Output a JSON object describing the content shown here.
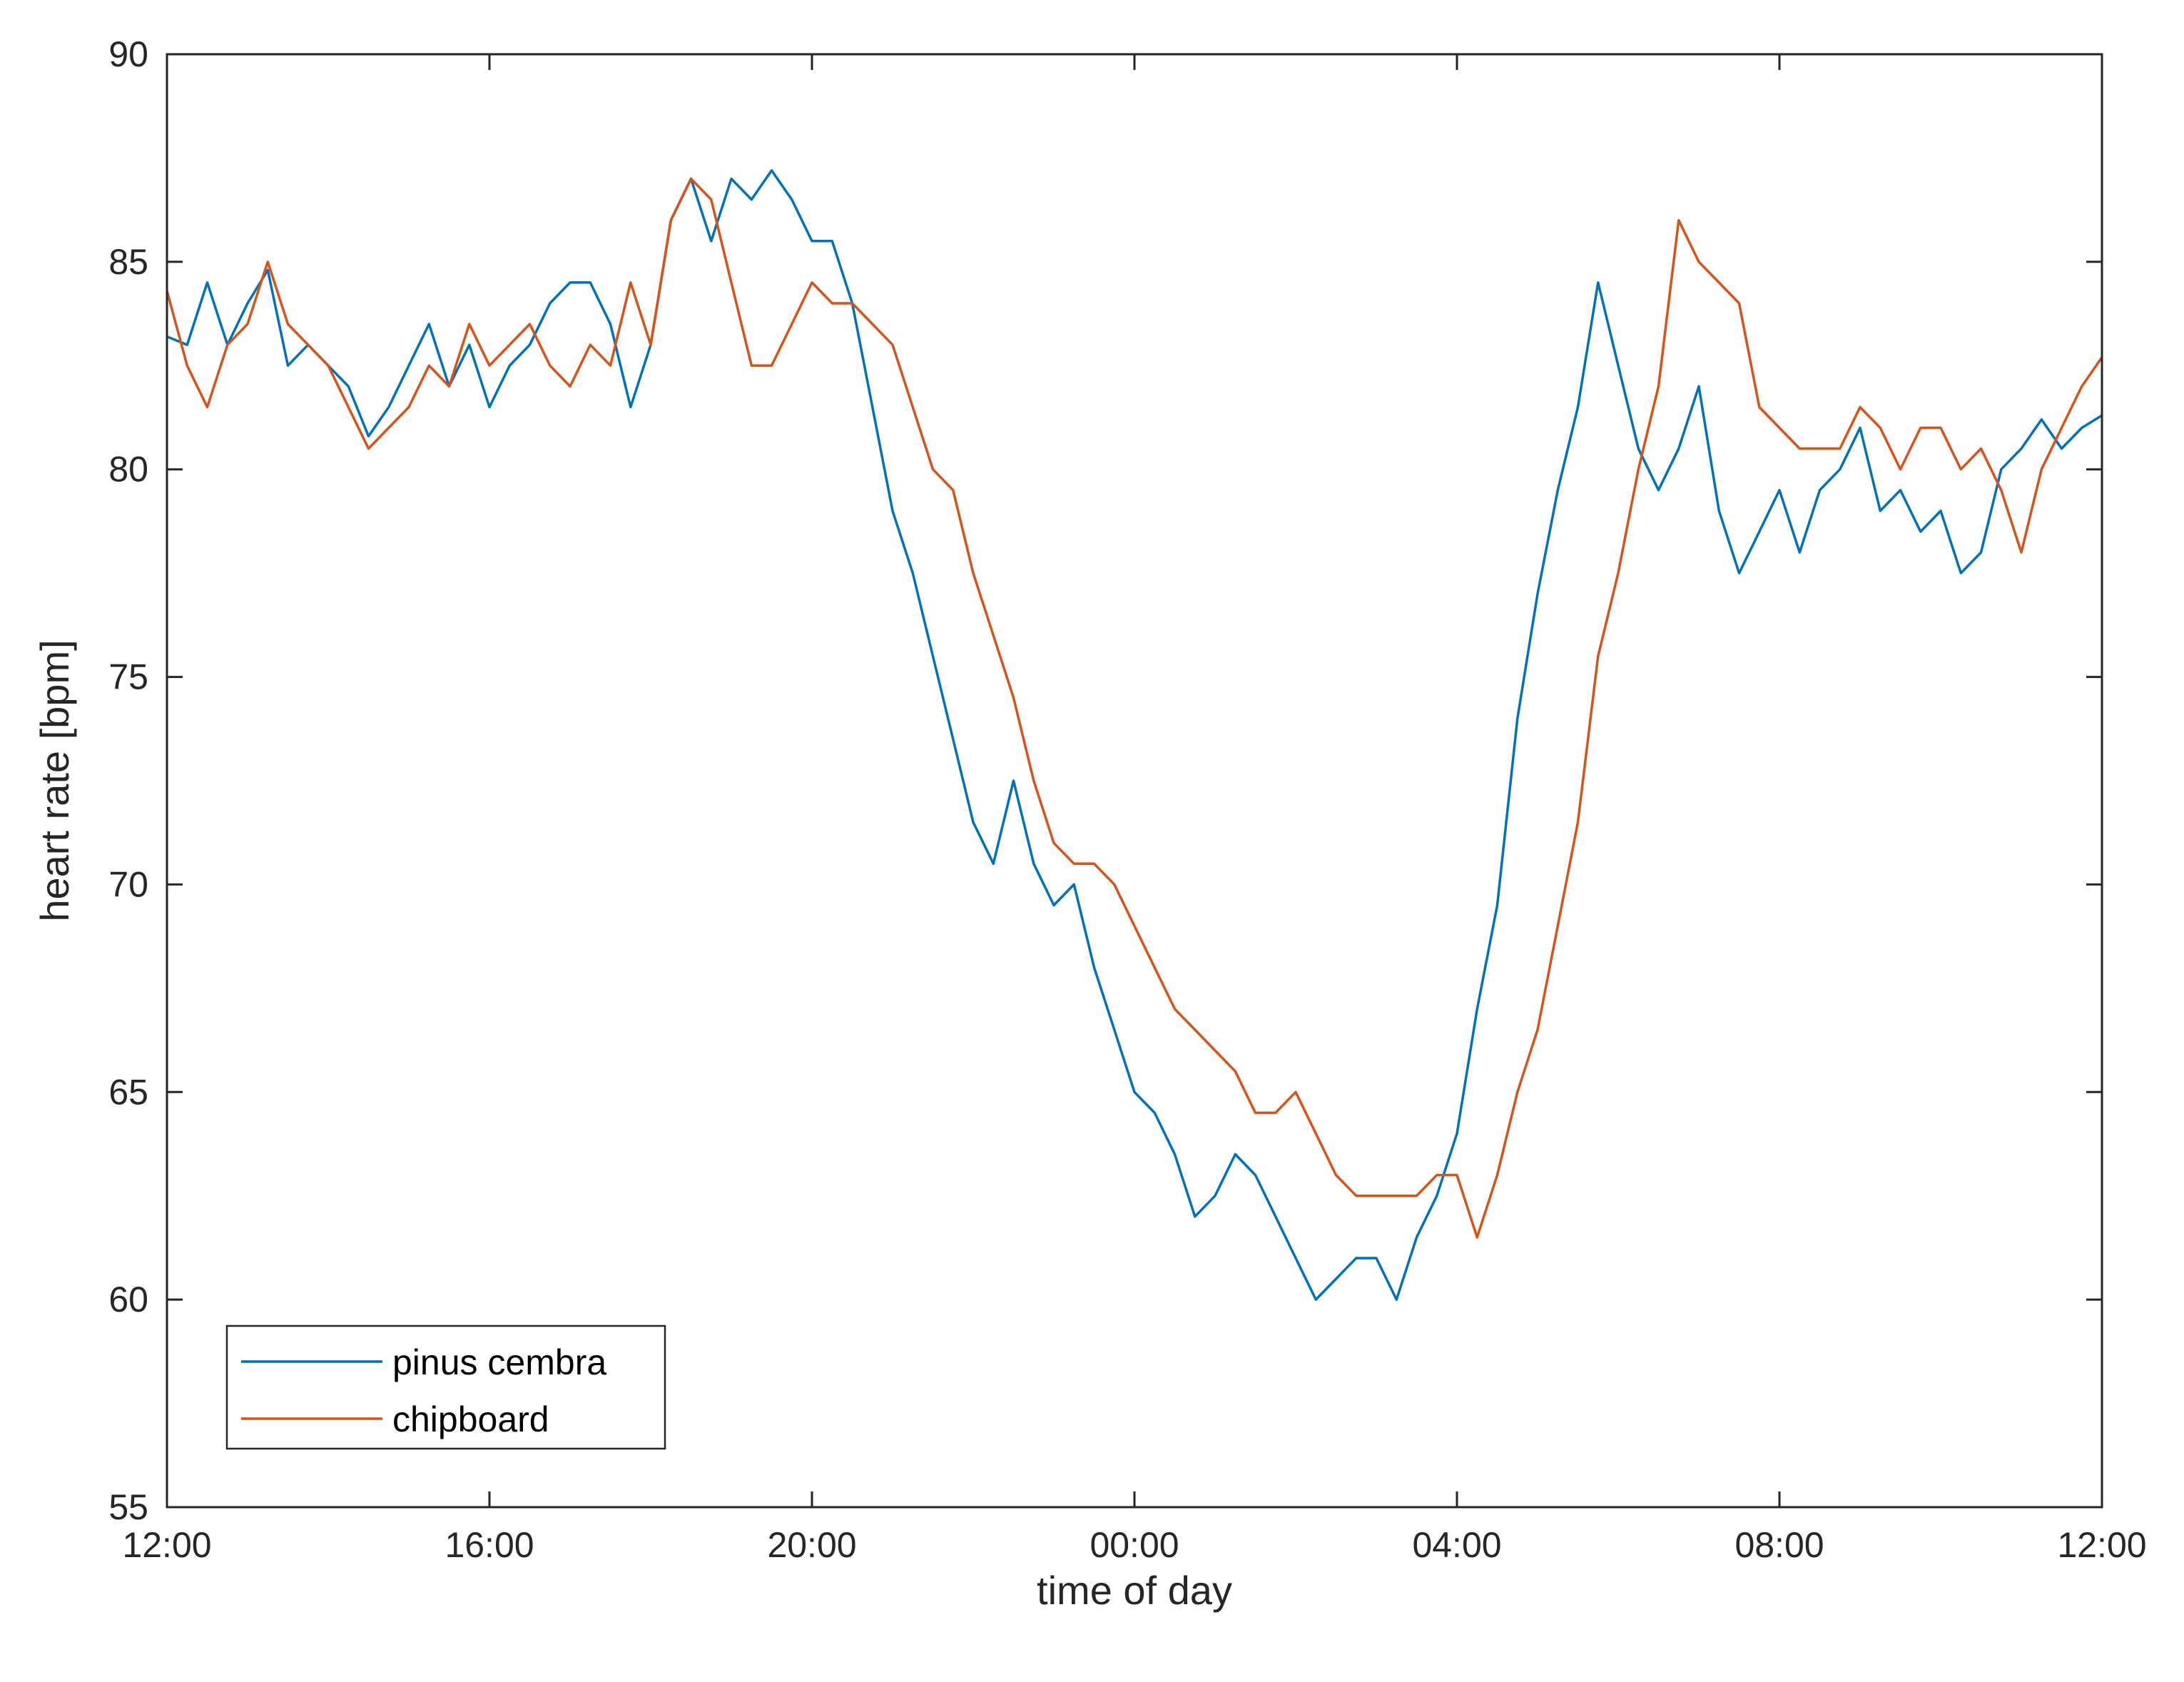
{
  "chart_data": {
    "type": "line",
    "xlabel": "time of day",
    "ylabel": "heart rate [bpm]",
    "ylim": [
      55,
      90
    ],
    "y_ticks": [
      55,
      60,
      65,
      70,
      75,
      80,
      85,
      90
    ],
    "x_ticks": [
      "12:00",
      "16:00",
      "20:00",
      "00:00",
      "04:00",
      "08:00",
      "12:00"
    ],
    "x_unit": "hours since 12:00",
    "xlim": [
      0,
      24
    ],
    "grid": false,
    "legend_position": "bottom-left",
    "series": [
      {
        "name": "pinus cembra",
        "color": "#0072BD",
        "x": [
          0,
          0.25,
          0.5,
          0.75,
          1,
          1.25,
          1.5,
          1.75,
          2,
          2.25,
          2.5,
          2.75,
          3,
          3.25,
          3.5,
          3.75,
          4,
          4.25,
          4.5,
          4.75,
          5,
          5.25,
          5.5,
          5.75,
          6,
          6.25,
          6.5,
          6.75,
          7,
          7.25,
          7.5,
          7.75,
          8,
          8.25,
          8.5,
          8.75,
          9,
          9.25,
          9.5,
          9.75,
          10,
          10.25,
          10.5,
          10.75,
          11,
          11.25,
          11.5,
          11.75,
          12,
          12.25,
          12.5,
          12.75,
          13,
          13.25,
          13.5,
          13.75,
          14,
          14.25,
          14.5,
          14.75,
          15,
          15.25,
          15.5,
          15.75,
          16,
          16.25,
          16.5,
          16.75,
          17,
          17.25,
          17.5,
          17.75,
          18,
          18.25,
          18.5,
          18.75,
          19,
          19.25,
          19.5,
          19.75,
          20,
          20.25,
          20.5,
          20.75,
          21,
          21.25,
          21.5,
          21.75,
          22,
          22.25,
          22.5,
          22.75,
          23,
          23.25,
          23.5,
          23.75,
          24
        ],
        "y": [
          83.2,
          83.0,
          84.5,
          83.0,
          84.0,
          84.8,
          82.5,
          83.0,
          82.5,
          82.0,
          80.8,
          81.5,
          82.5,
          83.5,
          82.0,
          83.0,
          81.5,
          82.5,
          83.0,
          84.0,
          84.5,
          84.5,
          83.5,
          81.5,
          83.0,
          86.0,
          87.0,
          85.5,
          87.0,
          86.5,
          87.2,
          86.5,
          85.5,
          85.5,
          84.0,
          81.5,
          79.0,
          77.5,
          75.5,
          73.5,
          71.5,
          70.5,
          72.5,
          70.5,
          69.5,
          70.0,
          68.0,
          66.5,
          65.0,
          64.5,
          63.5,
          62.0,
          62.5,
          63.5,
          63.0,
          62.0,
          61.0,
          60.0,
          60.5,
          61.0,
          61.0,
          60.0,
          61.5,
          62.5,
          64.0,
          67.0,
          69.5,
          74.0,
          77.0,
          79.5,
          81.5,
          84.5,
          82.5,
          80.5,
          79.5,
          80.5,
          82.0,
          79.0,
          77.5,
          78.5,
          79.5,
          78.0,
          79.5,
          80.0,
          81.0,
          79.0,
          79.5,
          78.5,
          79.0,
          77.5,
          78.0,
          80.0,
          80.5,
          81.2,
          80.5,
          81.0,
          81.3
        ]
      },
      {
        "name": "chipboard",
        "color": "#D95319",
        "x": [
          0,
          0.25,
          0.5,
          0.75,
          1,
          1.25,
          1.5,
          1.75,
          2,
          2.25,
          2.5,
          2.75,
          3,
          3.25,
          3.5,
          3.75,
          4,
          4.25,
          4.5,
          4.75,
          5,
          5.25,
          5.5,
          5.75,
          6,
          6.25,
          6.5,
          6.75,
          7,
          7.25,
          7.5,
          7.75,
          8,
          8.25,
          8.5,
          8.75,
          9,
          9.25,
          9.5,
          9.75,
          10,
          10.25,
          10.5,
          10.75,
          11,
          11.25,
          11.5,
          11.75,
          12,
          12.25,
          12.5,
          12.75,
          13,
          13.25,
          13.5,
          13.75,
          14,
          14.25,
          14.5,
          14.75,
          15,
          15.25,
          15.5,
          15.75,
          16,
          16.25,
          16.5,
          16.75,
          17,
          17.25,
          17.5,
          17.75,
          18,
          18.25,
          18.5,
          18.75,
          19,
          19.25,
          19.5,
          19.75,
          20,
          20.25,
          20.5,
          20.75,
          21,
          21.25,
          21.5,
          21.75,
          22,
          22.25,
          22.5,
          22.75,
          23,
          23.25,
          23.5,
          23.75,
          24
        ],
        "y": [
          84.3,
          82.5,
          81.5,
          83.0,
          83.5,
          85.0,
          83.5,
          83.0,
          82.5,
          81.5,
          80.5,
          81.0,
          81.5,
          82.5,
          82.0,
          83.5,
          82.5,
          83.0,
          83.5,
          82.5,
          82.0,
          83.0,
          82.5,
          84.5,
          83.0,
          86.0,
          87.0,
          86.5,
          84.5,
          82.5,
          82.5,
          83.5,
          84.5,
          84.0,
          84.0,
          83.5,
          83.0,
          81.5,
          80.0,
          79.5,
          77.5,
          76.0,
          74.5,
          72.5,
          71.0,
          70.5,
          70.5,
          70.0,
          69.0,
          68.0,
          67.0,
          66.5,
          66.0,
          65.5,
          64.5,
          64.5,
          65.0,
          64.0,
          63.0,
          62.5,
          62.5,
          62.5,
          62.5,
          63.0,
          63.0,
          61.5,
          63.0,
          65.0,
          66.5,
          69.0,
          71.5,
          75.5,
          77.5,
          80.0,
          82.0,
          86.0,
          85.0,
          84.5,
          84.0,
          81.5,
          81.0,
          80.5,
          80.5,
          80.5,
          81.5,
          81.0,
          80.0,
          81.0,
          81.0,
          80.0,
          80.5,
          79.5,
          78.0,
          80.0,
          81.0,
          82.0,
          82.7
        ]
      }
    ]
  }
}
